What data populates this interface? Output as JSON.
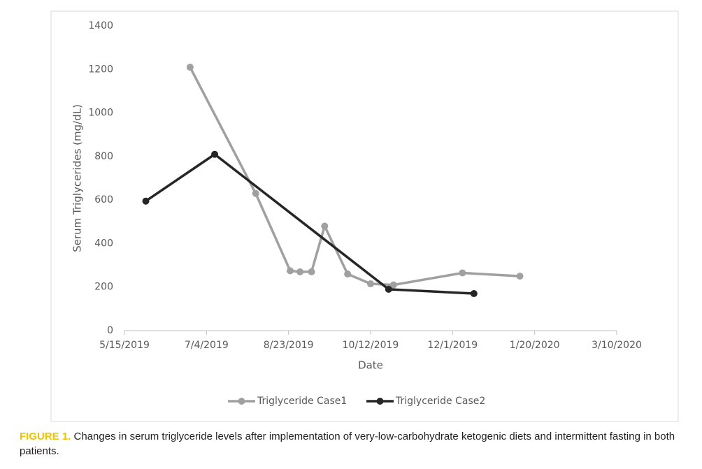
{
  "chart_data": {
    "type": "line",
    "xlabel": "Date",
    "ylabel": "Serum Triglycerides (mg/dL)",
    "xlim": [
      "5/15/2019",
      "3/10/2020"
    ],
    "xticks": [
      "5/15/2019",
      "7/4/2019",
      "8/23/2019",
      "10/12/2019",
      "12/1/2019",
      "1/20/2020",
      "3/10/2020"
    ],
    "ylim": [
      0,
      1400
    ],
    "yticks": [
      0,
      200,
      400,
      600,
      800,
      1000,
      1200,
      1400
    ],
    "grid": false,
    "legend": "bottom",
    "series": [
      {
        "name": "Triglyceride Case1",
        "color": "#a0a0a0",
        "x": [
          "6/24/2019",
          "8/3/2019",
          "8/24/2019",
          "8/30/2019",
          "9/6/2019",
          "9/14/2019",
          "9/28/2019",
          "10/12/2019",
          "10/26/2019",
          "12/7/2019",
          "1/11/2020"
        ],
        "values": [
          1210,
          630,
          275,
          270,
          270,
          480,
          260,
          215,
          210,
          265,
          250
        ]
      },
      {
        "name": "Triglyceride Case2",
        "color": "#262626",
        "x": [
          "5/28/2019",
          "7/9/2019",
          "10/23/2019",
          "12/14/2019"
        ],
        "values": [
          595,
          810,
          190,
          170
        ]
      }
    ]
  },
  "caption": {
    "label": "FIGURE 1.",
    "text": "Changes in serum triglyceride levels after implementation of very-low-carbohydrate ketogenic diets and intermittent fasting in both patients."
  }
}
